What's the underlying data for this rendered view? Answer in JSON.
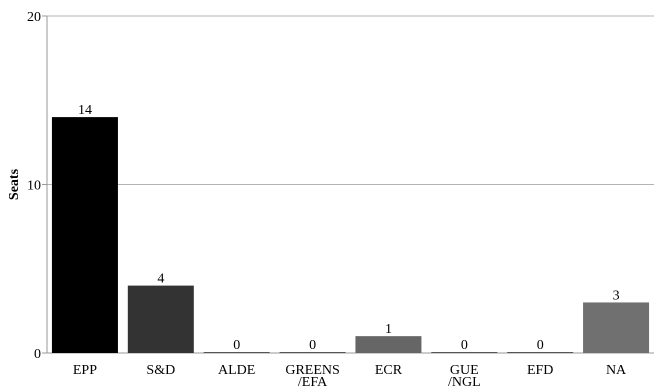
{
  "chart_data": {
    "type": "bar",
    "ylabel": "Seats",
    "xlabel": "",
    "ylim": [
      0,
      20
    ],
    "yticks": [
      0,
      10,
      20
    ],
    "grid": true,
    "categories": [
      {
        "label": [
          "EPP"
        ],
        "value": 14,
        "color": "#000000",
        "value_label": "14"
      },
      {
        "label": [
          "S&D"
        ],
        "value": 4,
        "color": "#333333",
        "value_label": "4"
      },
      {
        "label": [
          "ALDE"
        ],
        "value": 0,
        "color": "#555555",
        "value_label": "0"
      },
      {
        "label": [
          "GREENS",
          "/EFA"
        ],
        "value": 0,
        "color": "#555555",
        "value_label": "0"
      },
      {
        "label": [
          "ECR"
        ],
        "value": 1,
        "color": "#666666",
        "value_label": "1"
      },
      {
        "label": [
          "GUE",
          "/NGL"
        ],
        "value": 0,
        "color": "#555555",
        "value_label": "0"
      },
      {
        "label": [
          "EFD"
        ],
        "value": 0,
        "color": "#555555",
        "value_label": "0"
      },
      {
        "label": [
          "NA"
        ],
        "value": 3,
        "color": "#707070",
        "value_label": "3"
      }
    ]
  }
}
